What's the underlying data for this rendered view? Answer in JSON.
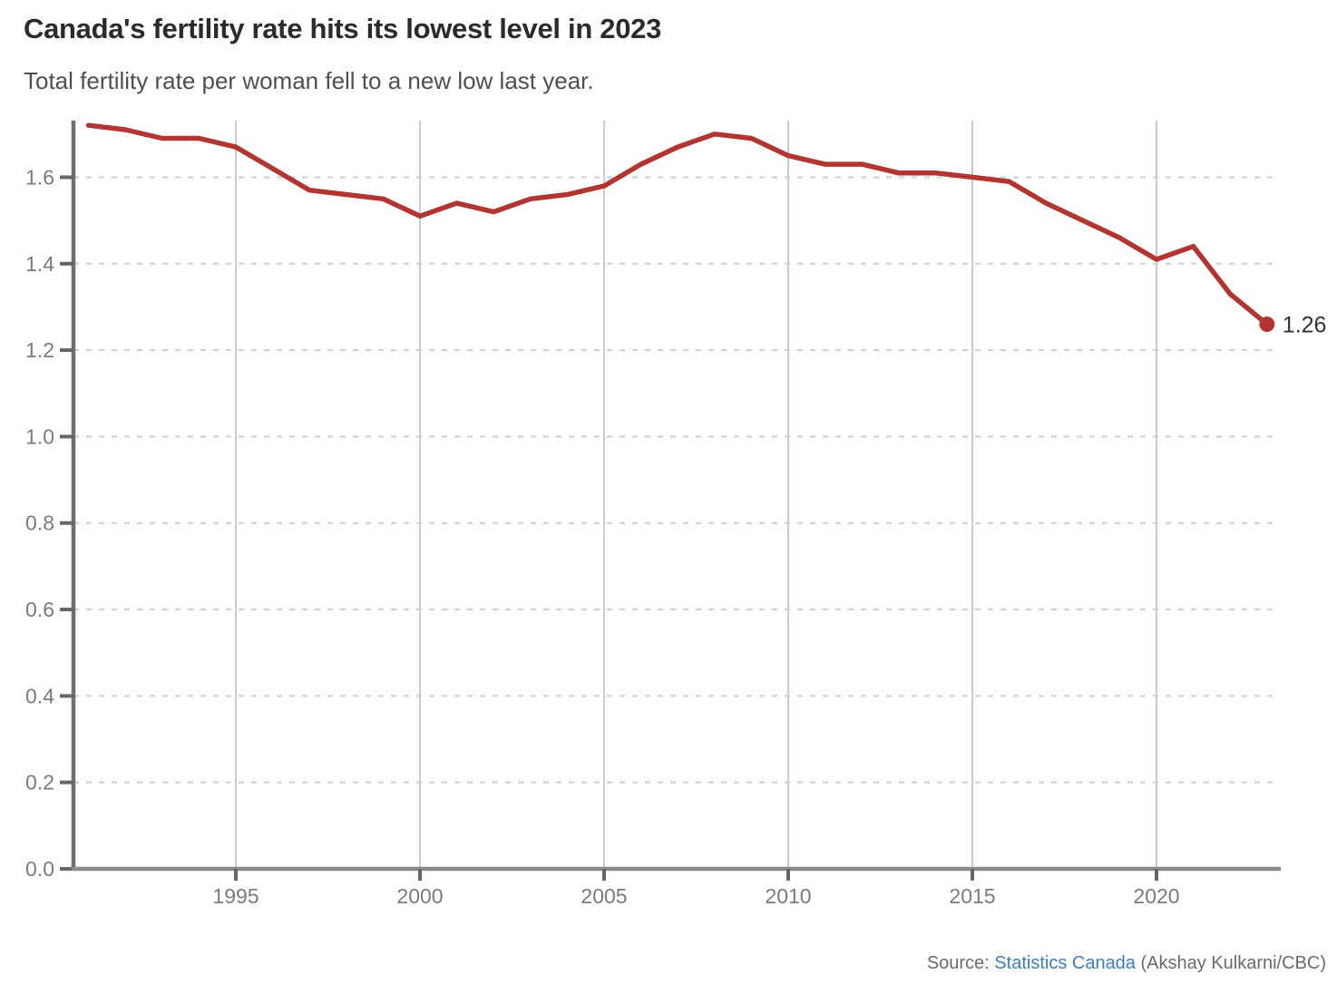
{
  "header": {
    "title": "Canada's fertility rate hits its lowest level in 2023",
    "subtitle": "Total fertility rate per woman fell to a new low last year."
  },
  "chart_data": {
    "type": "line",
    "title": "Canada's fertility rate hits its lowest level in 2023",
    "subtitle": "Total fertility rate per woman fell to a new low last year.",
    "series_name": "Total fertility rate per woman",
    "x": [
      1991,
      1992,
      1993,
      1994,
      1995,
      1996,
      1997,
      1998,
      1999,
      2000,
      2001,
      2002,
      2003,
      2004,
      2005,
      2006,
      2007,
      2008,
      2009,
      2010,
      2011,
      2012,
      2013,
      2014,
      2015,
      2016,
      2017,
      2018,
      2019,
      2020,
      2021,
      2022,
      2023
    ],
    "values": [
      1.72,
      1.71,
      1.69,
      1.69,
      1.67,
      1.62,
      1.57,
      1.56,
      1.55,
      1.51,
      1.54,
      1.52,
      1.55,
      1.56,
      1.58,
      1.63,
      1.67,
      1.7,
      1.69,
      1.65,
      1.63,
      1.63,
      1.61,
      1.61,
      1.6,
      1.59,
      1.54,
      1.5,
      1.46,
      1.41,
      1.44,
      1.33,
      1.26
    ],
    "x_ticks": [
      1995,
      2000,
      2005,
      2010,
      2015,
      2020
    ],
    "y_ticks": [
      "0.0",
      "0.2",
      "0.4",
      "0.6",
      "0.8",
      "1.0",
      "1.2",
      "1.4",
      "1.6"
    ],
    "xlim": [
      1990.6,
      2023.4
    ],
    "ylim": [
      0,
      1.73
    ],
    "grid": {
      "horizontal": "dashed",
      "vertical": "solid"
    },
    "legend_position": "none",
    "end_point_label": "1.26"
  },
  "colors": {
    "line": "#b23531",
    "end_dot": "#b23531",
    "grid_vertical": "#c7ccce",
    "grid_horizontal": "#c9cfd2",
    "axis_y": "#6f6f6f",
    "axis_x": "#8a8a8a",
    "tick_mark": "#666666",
    "tick_label": "#7b7b7b",
    "annotation": "#333333",
    "link_blue": "#3a7ebf",
    "source_gray": "#6b6b6b"
  },
  "footer": {
    "source_prefix": "Source: ",
    "source_link": "Statistics Canada",
    "source_suffix": " (Akshay Kulkarni/CBC)"
  }
}
